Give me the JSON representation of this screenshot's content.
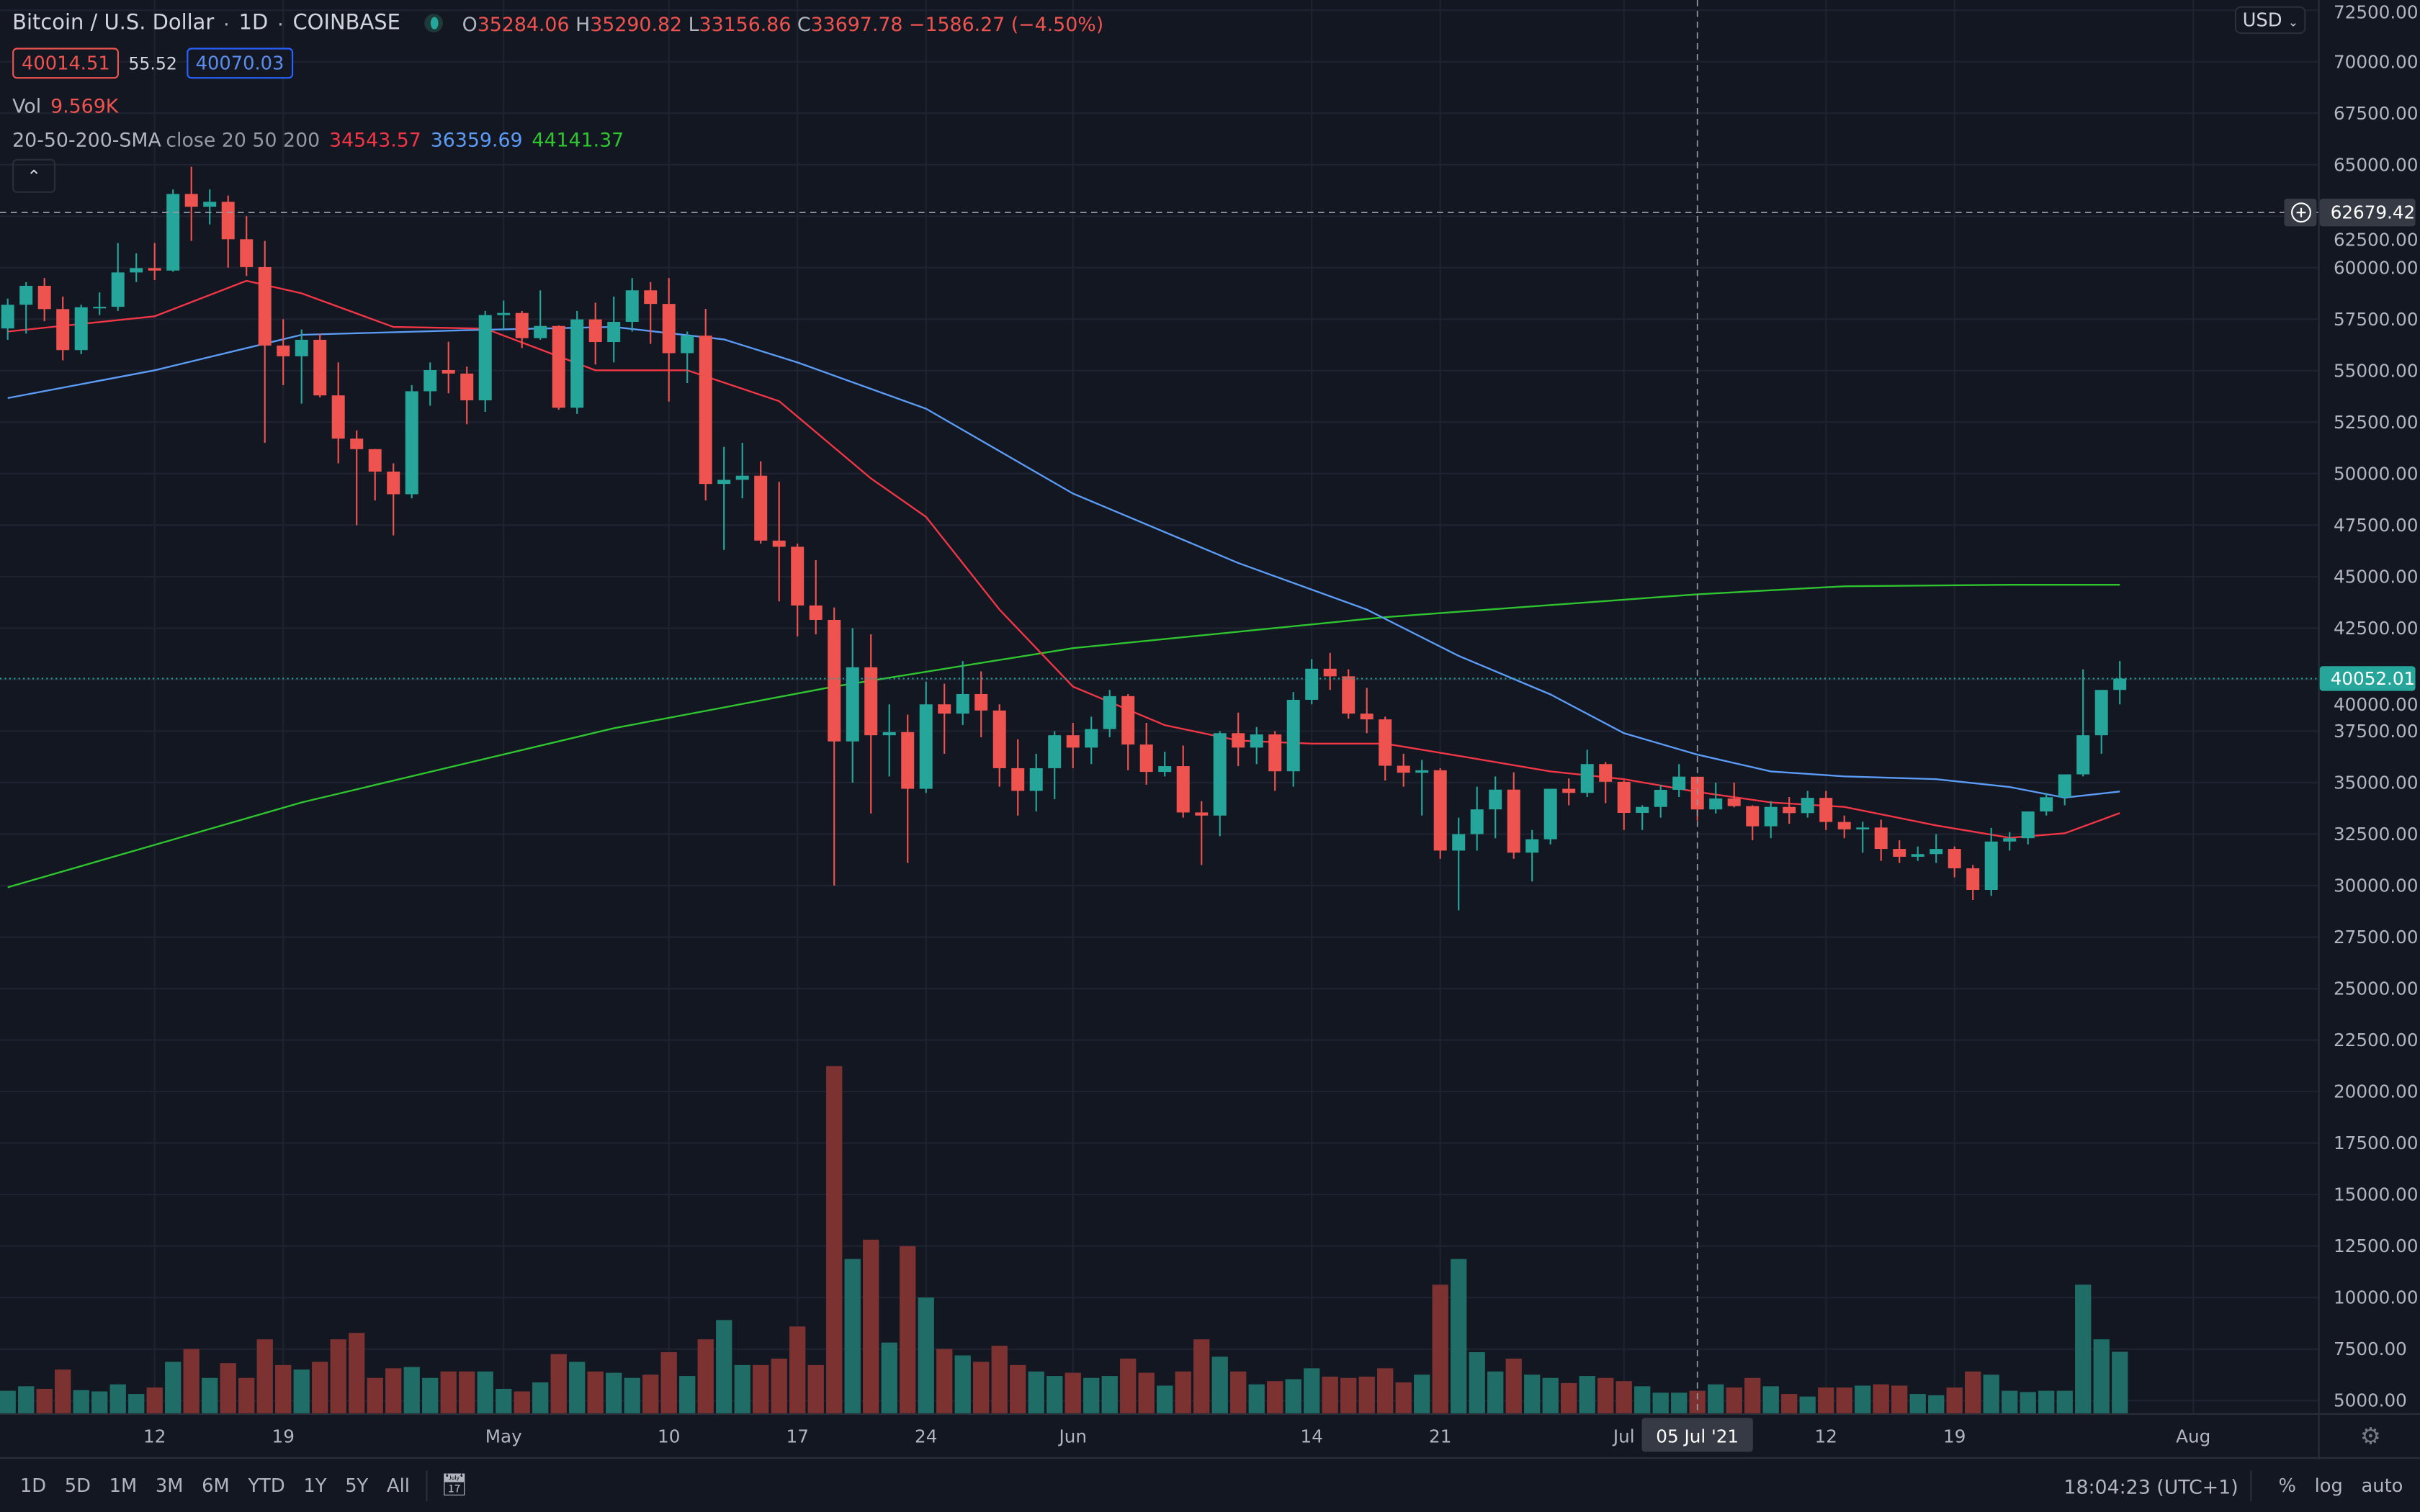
{
  "header": {
    "symbol": "Bitcoin / U.S. Dollar",
    "interval": "1D",
    "exchange": "COINBASE",
    "ohlc": {
      "o_label": "O",
      "o": "35284.06",
      "h_label": "H",
      "h": "35290.82",
      "l_label": "L",
      "l": "33156.86",
      "c_label": "C",
      "c": "33697.78",
      "change": "−1586.27 (−4.50%)"
    },
    "bid": "40014.51",
    "spread": "55.52",
    "ask": "40070.03",
    "vol_label": "Vol",
    "vol": "9.569K",
    "sma_label": "20-50-200-SMA",
    "sma_params": "close 20 50 200",
    "sma20": "34543.57",
    "sma50": "36359.69",
    "sma200": "44141.37",
    "collapse_icon": "chevron-up-icon"
  },
  "price_axis": {
    "currency": "USD",
    "ticks": [
      72500,
      70000,
      67500,
      65000,
      62500,
      60000,
      57500,
      55000,
      52500,
      50000,
      47500,
      45000,
      42500,
      40000,
      37500,
      35000,
      32500,
      30000,
      27500,
      25000,
      22500,
      20000,
      17500,
      15000,
      12500,
      10000,
      7500,
      5000
    ],
    "crosshair_price": "62679.42",
    "last_price": "40052.01"
  },
  "time_axis": {
    "labels": [
      {
        "t": "12",
        "d": "2021-04-12"
      },
      {
        "t": "19",
        "d": "2021-04-19"
      },
      {
        "t": "May",
        "d": "2021-05-01"
      },
      {
        "t": "10",
        "d": "2021-05-10"
      },
      {
        "t": "17",
        "d": "2021-05-17"
      },
      {
        "t": "24",
        "d": "2021-05-24"
      },
      {
        "t": "Jun",
        "d": "2021-06-01"
      },
      {
        "t": "14",
        "d": "2021-06-14"
      },
      {
        "t": "21",
        "d": "2021-06-21"
      },
      {
        "t": "Jul",
        "d": "2021-07-01"
      },
      {
        "t": "12",
        "d": "2021-07-12"
      },
      {
        "t": "19",
        "d": "2021-07-19"
      },
      {
        "t": "Aug",
        "d": "2021-08-01"
      }
    ],
    "crosshair_label": "05 Jul '21",
    "crosshair_date": "2021-07-05"
  },
  "toolbar": {
    "ranges": [
      "1D",
      "5D",
      "1M",
      "3M",
      "6M",
      "YTD",
      "1Y",
      "5Y",
      "All"
    ],
    "time": "18:04:23 (UTC+1)",
    "percent": "%",
    "log": "log",
    "auto": "auto"
  },
  "colors": {
    "up": "#26a69a",
    "down": "#ef5350",
    "sma20": "#f23645",
    "sma50": "#5b9cf6",
    "sma200": "#2fc52f",
    "bg": "#131722"
  },
  "chart_data": {
    "type": "candlestick",
    "volume_units": "K",
    "candles": [
      [
        "2021-04-04",
        57050,
        58500,
        56500,
        58200,
        3.5
      ],
      [
        "2021-04-05",
        58200,
        59300,
        56800,
        59120,
        4.2
      ],
      [
        "2021-04-06",
        59120,
        59500,
        57400,
        57990,
        3.8
      ],
      [
        "2021-04-07",
        57990,
        58600,
        55500,
        56000,
        6.8
      ],
      [
        "2021-04-08",
        56000,
        58200,
        55800,
        58080,
        3.6
      ],
      [
        "2021-04-09",
        58080,
        58800,
        57700,
        58100,
        3.4
      ],
      [
        "2021-04-10",
        58100,
        61200,
        57900,
        59770,
        4.5
      ],
      [
        "2021-04-11",
        59770,
        60700,
        59300,
        59980,
        3.0
      ],
      [
        "2021-04-12",
        59980,
        61200,
        59400,
        59860,
        4.0
      ],
      [
        "2021-04-13",
        59860,
        63800,
        59800,
        63580,
        8.0
      ],
      [
        "2021-04-14",
        63580,
        64900,
        61300,
        62960,
        10.0
      ],
      [
        "2021-04-15",
        62960,
        63800,
        62100,
        63200,
        5.5
      ],
      [
        "2021-04-16",
        63200,
        63500,
        60000,
        61380,
        7.8
      ],
      [
        "2021-04-17",
        61380,
        62500,
        59600,
        60030,
        5.5
      ],
      [
        "2021-04-18",
        60030,
        61300,
        51500,
        56220,
        11.5
      ],
      [
        "2021-04-19",
        56220,
        57500,
        54300,
        55700,
        7.5
      ],
      [
        "2021-04-20",
        55700,
        57000,
        53400,
        56500,
        6.8
      ],
      [
        "2021-04-21",
        56500,
        56800,
        53700,
        53800,
        8.0
      ],
      [
        "2021-04-22",
        53800,
        55400,
        50500,
        51700,
        11.5
      ],
      [
        "2021-04-23",
        51700,
        52100,
        47500,
        51190,
        12.5
      ],
      [
        "2021-04-24",
        51190,
        51200,
        48700,
        50100,
        5.5
      ],
      [
        "2021-04-25",
        50100,
        50500,
        47000,
        49000,
        7.0
      ],
      [
        "2021-04-26",
        49000,
        54300,
        48800,
        54000,
        7.2
      ],
      [
        "2021-04-27",
        54000,
        55400,
        53300,
        55030,
        5.5
      ],
      [
        "2021-04-28",
        55030,
        56400,
        53900,
        54860,
        6.5
      ],
      [
        "2021-04-29",
        54860,
        55200,
        52400,
        53560,
        6.5
      ],
      [
        "2021-04-30",
        53560,
        57900,
        53000,
        57700,
        6.5
      ],
      [
        "2021-05-01",
        57700,
        58400,
        57000,
        57800,
        3.8
      ],
      [
        "2021-05-02",
        57800,
        57900,
        56100,
        56580,
        3.4
      ],
      [
        "2021-05-03",
        56580,
        58900,
        56500,
        57170,
        4.8
      ],
      [
        "2021-05-04",
        57170,
        57200,
        53100,
        53200,
        9.2
      ],
      [
        "2021-05-05",
        53200,
        57900,
        52900,
        57490,
        8.0
      ],
      [
        "2021-05-06",
        57490,
        58300,
        55300,
        56390,
        6.5
      ],
      [
        "2021-05-07",
        56390,
        58600,
        55400,
        57370,
        6.3
      ],
      [
        "2021-05-08",
        57370,
        59500,
        56900,
        58900,
        5.5
      ],
      [
        "2021-05-09",
        58900,
        59300,
        56300,
        58240,
        6.0
      ],
      [
        "2021-05-10",
        58240,
        59500,
        53500,
        55850,
        9.5
      ],
      [
        "2021-05-11",
        55850,
        56900,
        54400,
        56700,
        5.8
      ],
      [
        "2021-05-12",
        56700,
        58000,
        48700,
        49500,
        11.5
      ],
      [
        "2021-05-13",
        49500,
        51300,
        46300,
        49700,
        14.5
      ],
      [
        "2021-05-14",
        49700,
        51500,
        48800,
        49900,
        7.5
      ],
      [
        "2021-05-15",
        49900,
        50600,
        46600,
        46750,
        7.5
      ],
      [
        "2021-05-16",
        46750,
        49600,
        43800,
        46450,
        8.5
      ],
      [
        "2021-05-17",
        46450,
        46600,
        42100,
        43600,
        13.5
      ],
      [
        "2021-05-18",
        43600,
        45800,
        42200,
        42900,
        7.5
      ],
      [
        "2021-05-19",
        42900,
        43500,
        30000,
        37000,
        54
      ],
      [
        "2021-05-20",
        37000,
        42500,
        35000,
        40600,
        24
      ],
      [
        "2021-05-21",
        40600,
        42200,
        33500,
        37300,
        27
      ],
      [
        "2021-05-22",
        37300,
        38800,
        35300,
        37450,
        11
      ],
      [
        "2021-05-23",
        37450,
        38300,
        31100,
        34700,
        26
      ],
      [
        "2021-05-24",
        34700,
        39900,
        34500,
        38800,
        18
      ],
      [
        "2021-05-25",
        38800,
        39800,
        36400,
        38350,
        10
      ],
      [
        "2021-05-26",
        38350,
        40900,
        37800,
        39300,
        9.0
      ],
      [
        "2021-05-27",
        39300,
        40400,
        37200,
        38500,
        8.0
      ],
      [
        "2021-05-28",
        38500,
        38800,
        34800,
        35700,
        10.5
      ],
      [
        "2021-05-29",
        35700,
        37100,
        33400,
        34600,
        7.5
      ],
      [
        "2021-05-30",
        34600,
        36400,
        33600,
        35700,
        6.5
      ],
      [
        "2021-05-31",
        35700,
        37500,
        34200,
        37300,
        5.8
      ],
      [
        "2021-06-01",
        37300,
        37900,
        35700,
        36700,
        6.3
      ],
      [
        "2021-06-02",
        36700,
        38200,
        35900,
        37600,
        5.5
      ],
      [
        "2021-06-03",
        37600,
        39500,
        37200,
        39200,
        5.8
      ],
      [
        "2021-06-04",
        39200,
        39300,
        35600,
        36850,
        8.5
      ],
      [
        "2021-06-05",
        36850,
        37900,
        34900,
        35520,
        6.3
      ],
      [
        "2021-06-06",
        35520,
        36500,
        35300,
        35800,
        4.3
      ],
      [
        "2021-06-07",
        35800,
        36800,
        33300,
        33550,
        6.5
      ],
      [
        "2021-06-08",
        33550,
        34100,
        31000,
        33400,
        11.5
      ],
      [
        "2021-06-09",
        33400,
        37500,
        32400,
        37400,
        8.8
      ],
      [
        "2021-06-10",
        37400,
        38400,
        35800,
        36700,
        6.5
      ],
      [
        "2021-06-11",
        36700,
        37700,
        35900,
        37340,
        4.5
      ],
      [
        "2021-06-12",
        37340,
        37500,
        34600,
        35550,
        5.0
      ],
      [
        "2021-06-13",
        35550,
        39400,
        34800,
        39020,
        5.3
      ],
      [
        "2021-06-14",
        39020,
        41000,
        38800,
        40530,
        7.0
      ],
      [
        "2021-06-15",
        40530,
        41300,
        39500,
        40160,
        5.7
      ],
      [
        "2021-06-16",
        40160,
        40500,
        38100,
        38350,
        5.5
      ],
      [
        "2021-06-17",
        38350,
        39600,
        37400,
        38070,
        5.7
      ],
      [
        "2021-06-18",
        38070,
        38200,
        35100,
        35820,
        7.0
      ],
      [
        "2021-06-19",
        35820,
        36400,
        34800,
        35480,
        4.8
      ],
      [
        "2021-06-20",
        35480,
        36100,
        33400,
        35600,
        6.0
      ],
      [
        "2021-06-21",
        35600,
        35700,
        31300,
        31700,
        20
      ],
      [
        "2021-06-22",
        31700,
        33300,
        28800,
        32500,
        24
      ],
      [
        "2021-06-23",
        32500,
        34800,
        31700,
        33700,
        9.5
      ],
      [
        "2021-06-24",
        33700,
        35300,
        32300,
        34660,
        6.5
      ],
      [
        "2021-06-25",
        34660,
        35500,
        31300,
        31600,
        8.5
      ],
      [
        "2021-06-26",
        31600,
        32700,
        30200,
        32250,
        6.0
      ],
      [
        "2021-06-27",
        32250,
        34700,
        32000,
        34700,
        5.5
      ],
      [
        "2021-06-28",
        34700,
        35200,
        33900,
        34500,
        4.7
      ],
      [
        "2021-06-29",
        34500,
        36600,
        34300,
        35900,
        5.8
      ],
      [
        "2021-06-30",
        35900,
        36000,
        34000,
        35040,
        5.5
      ],
      [
        "2021-07-01",
        35040,
        35100,
        32700,
        33530,
        5.0
      ],
      [
        "2021-07-02",
        33530,
        33900,
        32700,
        33820,
        4.2
      ],
      [
        "2021-07-03",
        33820,
        34900,
        33300,
        34650,
        3.2
      ],
      [
        "2021-07-04",
        34650,
        35900,
        34300,
        35290,
        3.2
      ],
      [
        "2021-07-05",
        35284.06,
        35290.82,
        33156.86,
        33697.78,
        3.5
      ],
      [
        "2021-07-06",
        33698,
        35000,
        33500,
        34230,
        4.5
      ],
      [
        "2021-07-07",
        34230,
        35000,
        33800,
        33860,
        4.0
      ],
      [
        "2021-07-08",
        33860,
        33900,
        32200,
        32880,
        5.5
      ],
      [
        "2021-07-09",
        32880,
        34100,
        32300,
        33820,
        4.2
      ],
      [
        "2021-07-10",
        33820,
        34300,
        33000,
        33520,
        3.0
      ],
      [
        "2021-07-11",
        33520,
        34600,
        33300,
        34260,
        2.6
      ],
      [
        "2021-07-12",
        34260,
        34600,
        32700,
        33090,
        4.0
      ],
      [
        "2021-07-13",
        33090,
        33400,
        32300,
        32730,
        4.0
      ],
      [
        "2021-07-14",
        32730,
        33100,
        31600,
        32820,
        4.3
      ],
      [
        "2021-07-15",
        32820,
        33200,
        31200,
        31780,
        4.5
      ],
      [
        "2021-07-16",
        31780,
        32200,
        31100,
        31400,
        4.3
      ],
      [
        "2021-07-17",
        31400,
        31900,
        31200,
        31530,
        3.0
      ],
      [
        "2021-07-18",
        31530,
        32500,
        31100,
        31780,
        2.8
      ],
      [
        "2021-07-19",
        31780,
        31900,
        30400,
        30840,
        4.0
      ],
      [
        "2021-07-20",
        30840,
        31000,
        29300,
        29790,
        6.5
      ],
      [
        "2021-07-21",
        29790,
        32800,
        29500,
        32140,
        6.0
      ],
      [
        "2021-07-22",
        32140,
        32600,
        31700,
        32300,
        3.5
      ],
      [
        "2021-07-23",
        32300,
        33600,
        32000,
        33600,
        3.3
      ],
      [
        "2021-07-24",
        33600,
        34500,
        33400,
        34290,
        3.5
      ],
      [
        "2021-07-25",
        34290,
        35400,
        33900,
        35400,
        3.5
      ],
      [
        "2021-07-26",
        35400,
        40500,
        35300,
        37300,
        20
      ],
      [
        "2021-07-27",
        37300,
        39500,
        36400,
        39500,
        11.5
      ],
      [
        "2021-07-28",
        39500,
        40900,
        38800,
        40052.01,
        9.569
      ]
    ],
    "sma20": [
      [
        "2021-04-04",
        56900
      ],
      [
        "2021-04-12",
        57640
      ],
      [
        "2021-04-17",
        59360
      ],
      [
        "2021-04-20",
        58760
      ],
      [
        "2021-04-25",
        57120
      ],
      [
        "2021-04-30",
        57040
      ],
      [
        "2021-05-06",
        55020
      ],
      [
        "2021-05-11",
        55020
      ],
      [
        "2021-05-16",
        53520
      ],
      [
        "2021-05-21",
        49770
      ],
      [
        "2021-05-24",
        47900
      ],
      [
        "2021-05-28",
        43400
      ],
      [
        "2021-06-01",
        39660
      ],
      [
        "2021-06-06",
        37790
      ],
      [
        "2021-06-10",
        37040
      ],
      [
        "2021-06-14",
        36890
      ],
      [
        "2021-06-18",
        36890
      ],
      [
        "2021-06-22",
        36300
      ],
      [
        "2021-06-27",
        35540
      ],
      [
        "2021-07-01",
        35170
      ],
      [
        "2021-07-05",
        34543.57
      ],
      [
        "2021-07-09",
        34040
      ],
      [
        "2021-07-13",
        33820
      ],
      [
        "2021-07-18",
        32920
      ],
      [
        "2021-07-22",
        32320
      ],
      [
        "2021-07-25",
        32540
      ],
      [
        "2021-07-28",
        33520
      ]
    ],
    "sma50": [
      [
        "2021-04-04",
        53670
      ],
      [
        "2021-04-12",
        55020
      ],
      [
        "2021-04-20",
        56740
      ],
      [
        "2021-04-29",
        56970
      ],
      [
        "2021-05-07",
        57120
      ],
      [
        "2021-05-13",
        56520
      ],
      [
        "2021-05-17",
        55400
      ],
      [
        "2021-05-24",
        53150
      ],
      [
        "2021-06-01",
        49030
      ],
      [
        "2021-06-10",
        45660
      ],
      [
        "2021-06-17",
        43400
      ],
      [
        "2021-06-22",
        41150
      ],
      [
        "2021-06-27",
        39280
      ],
      [
        "2021-07-01",
        37400
      ],
      [
        "2021-07-05",
        36359.69
      ],
      [
        "2021-07-09",
        35540
      ],
      [
        "2021-07-13",
        35300
      ],
      [
        "2021-07-18",
        35170
      ],
      [
        "2021-07-22",
        34790
      ],
      [
        "2021-07-25",
        34270
      ],
      [
        "2021-07-28",
        34570
      ]
    ],
    "sma200": [
      [
        "2021-04-04",
        29920
      ],
      [
        "2021-04-20",
        34040
      ],
      [
        "2021-05-07",
        37640
      ],
      [
        "2021-05-19",
        39660
      ],
      [
        "2021-06-01",
        41530
      ],
      [
        "2021-06-18",
        43030
      ],
      [
        "2021-07-05",
        44141.37
      ],
      [
        "2021-07-13",
        44530
      ],
      [
        "2021-07-22",
        44610
      ],
      [
        "2021-07-28",
        44610
      ]
    ]
  }
}
